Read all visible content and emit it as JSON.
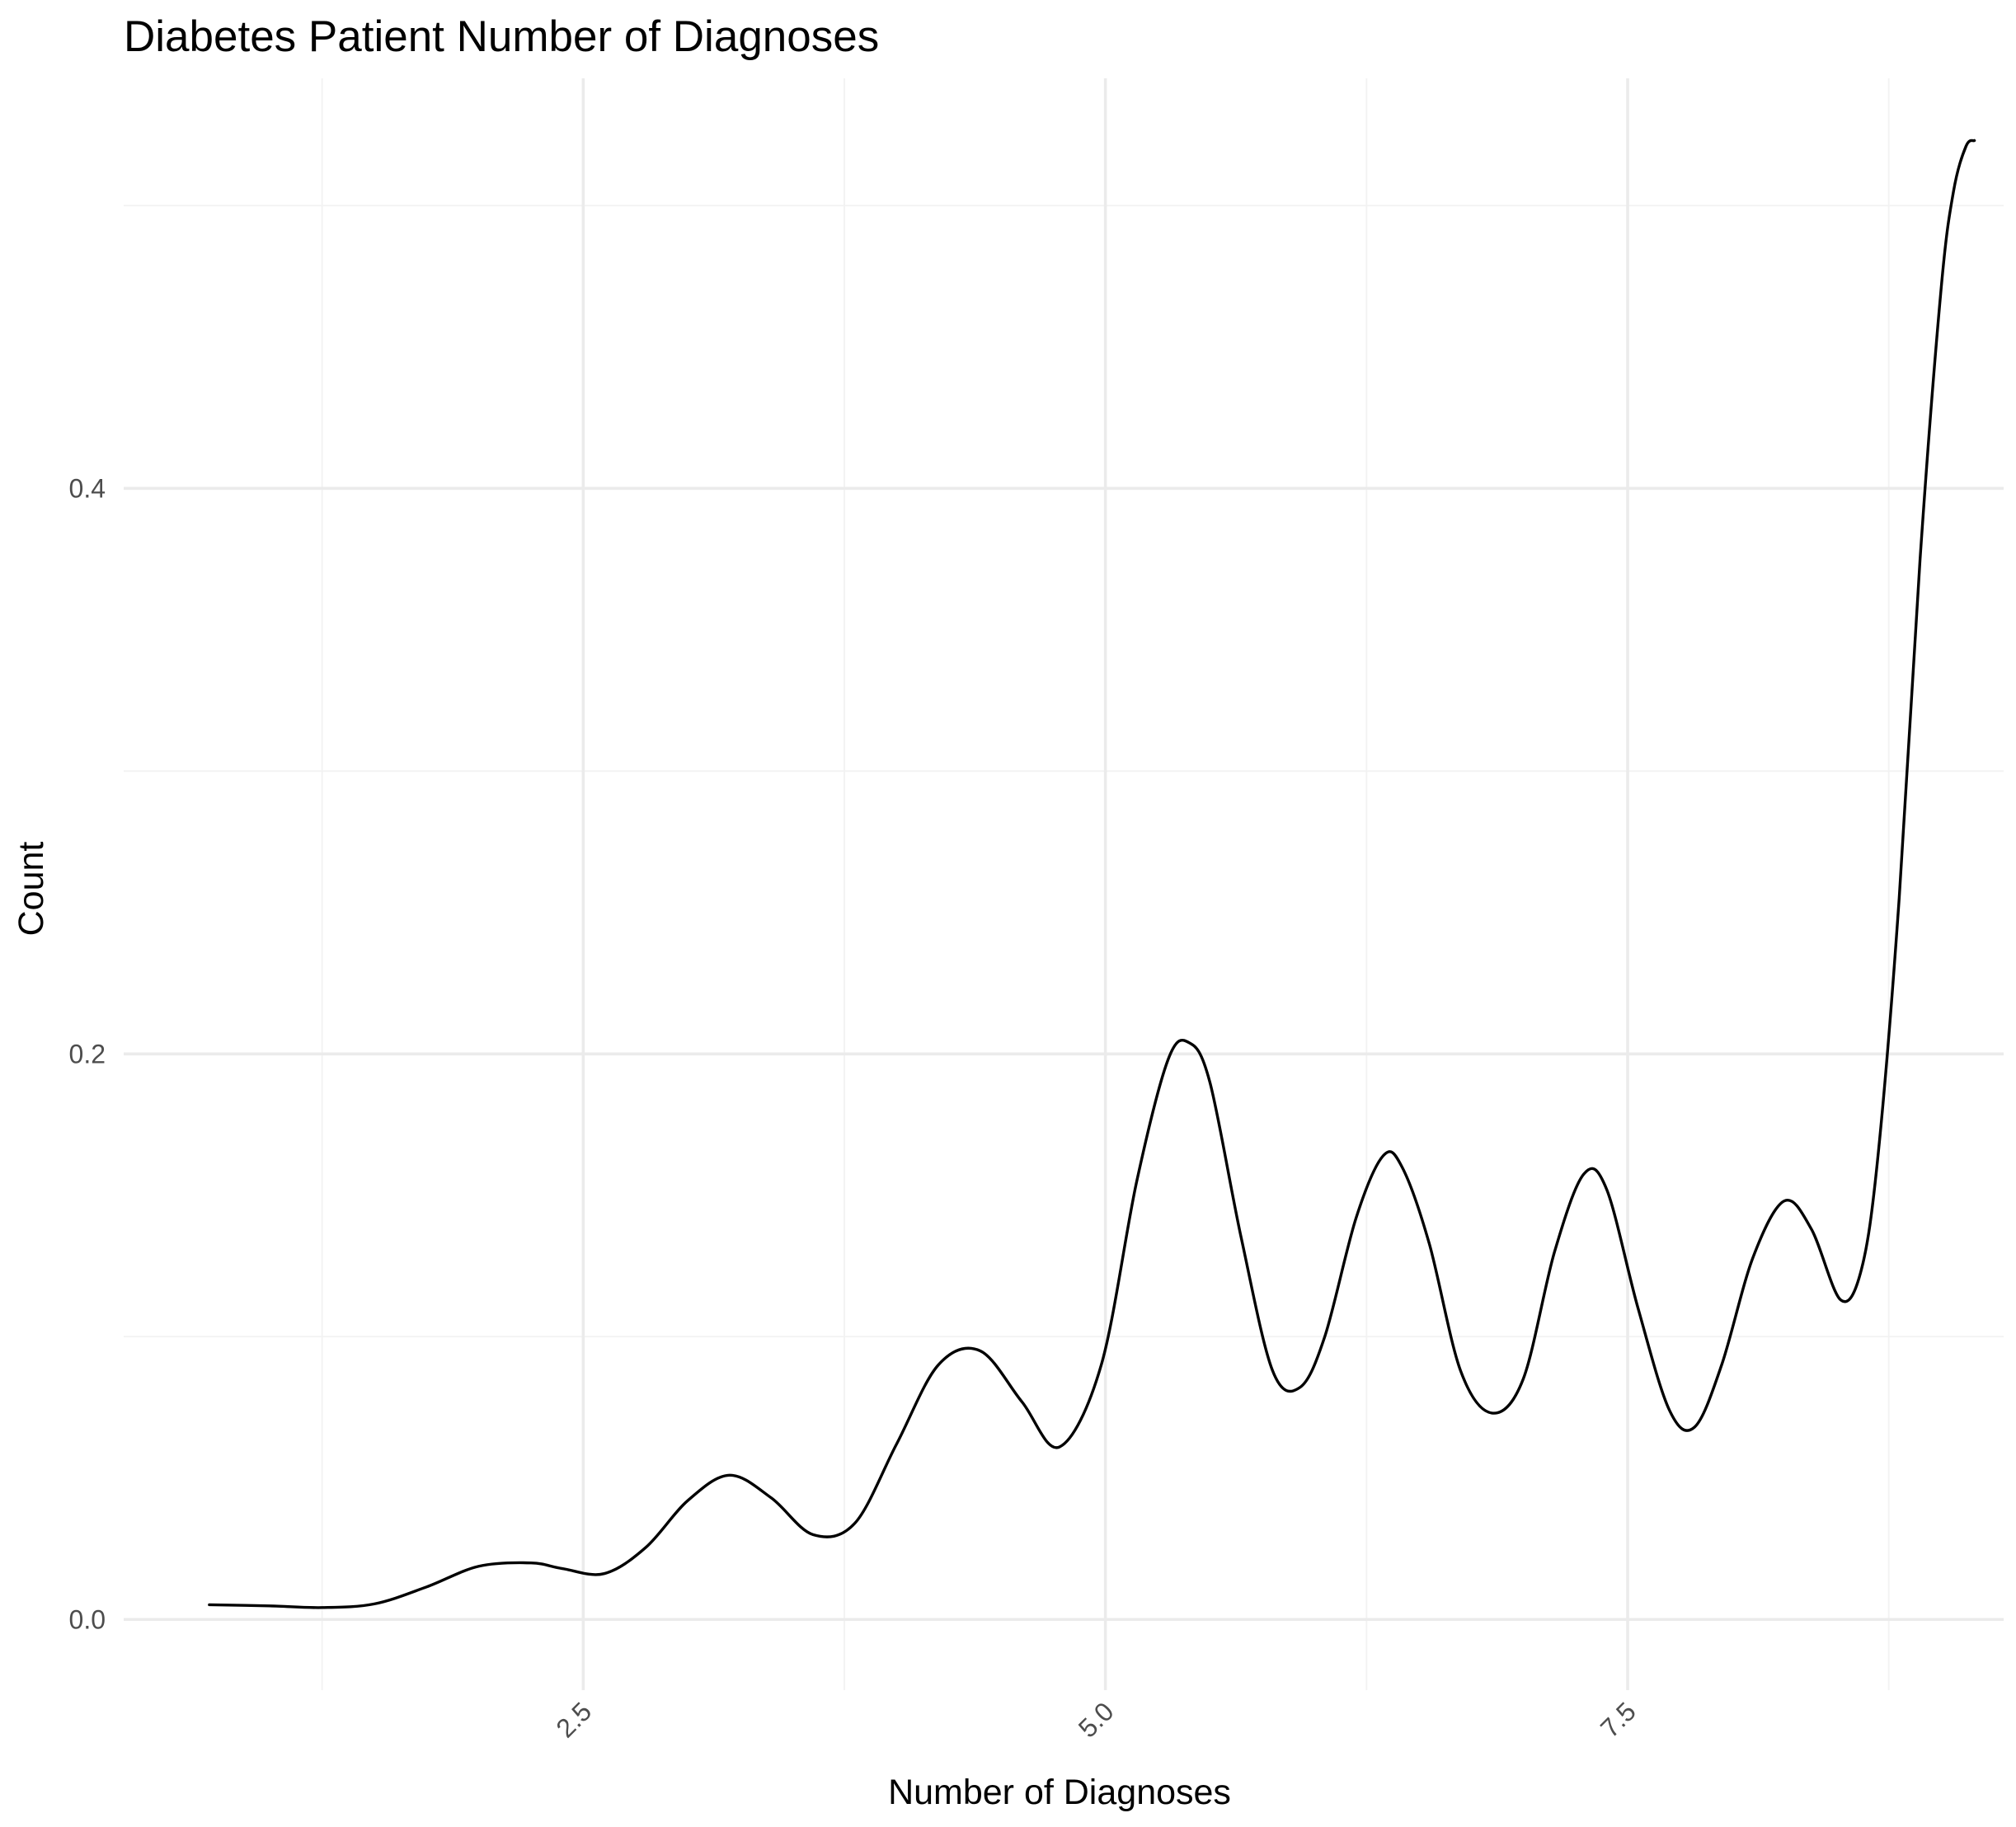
{
  "chart_data": {
    "type": "line",
    "title": "Diabetes Patient Number of Diagnoses",
    "xlabel": "Number of Diagnoses",
    "ylabel": "Count",
    "xlim": [
      0.3,
      9.3
    ],
    "ylim": [
      -0.025,
      0.545
    ],
    "x_ticks": [
      2.5,
      5.0,
      7.5
    ],
    "x_tick_labels": [
      "2.5",
      "5.0",
      "7.5"
    ],
    "x_minor_ticks": [
      1.25,
      3.75,
      6.25,
      8.75
    ],
    "y_ticks": [
      0.0,
      0.2,
      0.4
    ],
    "y_tick_labels": [
      "0.0",
      "0.2",
      "0.4"
    ],
    "y_minor_ticks": [
      0.1,
      0.3,
      0.5
    ],
    "grid": true,
    "x_tick_rotation_deg": -45,
    "series": [
      {
        "color": "#000000",
        "points": [
          [
            0.71,
            0.0052
          ],
          [
            1.0,
            0.0048
          ],
          [
            1.25,
            0.0042
          ],
          [
            1.5,
            0.0055
          ],
          [
            1.75,
            0.0115
          ],
          [
            2.0,
            0.0188
          ],
          [
            2.25,
            0.02
          ],
          [
            2.4,
            0.018
          ],
          [
            2.6,
            0.0162
          ],
          [
            2.8,
            0.0255
          ],
          [
            3.0,
            0.042
          ],
          [
            3.2,
            0.051
          ],
          [
            3.4,
            0.043
          ],
          [
            3.6,
            0.03
          ],
          [
            3.8,
            0.034
          ],
          [
            4.0,
            0.062
          ],
          [
            4.2,
            0.09
          ],
          [
            4.4,
            0.095
          ],
          [
            4.6,
            0.077
          ],
          [
            4.78,
            0.061
          ],
          [
            4.98,
            0.09
          ],
          [
            5.15,
            0.155
          ],
          [
            5.3,
            0.198
          ],
          [
            5.4,
            0.204
          ],
          [
            5.5,
            0.19
          ],
          [
            5.65,
            0.135
          ],
          [
            5.8,
            0.088
          ],
          [
            5.93,
            0.082
          ],
          [
            6.05,
            0.1
          ],
          [
            6.2,
            0.142
          ],
          [
            6.33,
            0.164
          ],
          [
            6.42,
            0.16
          ],
          [
            6.55,
            0.133
          ],
          [
            6.7,
            0.088
          ],
          [
            6.85,
            0.073
          ],
          [
            7.0,
            0.085
          ],
          [
            7.15,
            0.13
          ],
          [
            7.29,
            0.1575
          ],
          [
            7.4,
            0.152
          ],
          [
            7.55,
            0.11
          ],
          [
            7.7,
            0.074
          ],
          [
            7.82,
            0.068
          ],
          [
            7.95,
            0.09
          ],
          [
            8.1,
            0.128
          ],
          [
            8.25,
            0.148
          ],
          [
            8.38,
            0.138
          ],
          [
            8.52,
            0.113
          ],
          [
            8.62,
            0.124
          ],
          [
            8.7,
            0.165
          ],
          [
            8.8,
            0.255
          ],
          [
            8.9,
            0.375
          ],
          [
            9.0,
            0.47
          ],
          [
            9.06,
            0.505
          ],
          [
            9.12,
            0.521
          ],
          [
            9.16,
            0.523
          ]
        ]
      }
    ]
  }
}
